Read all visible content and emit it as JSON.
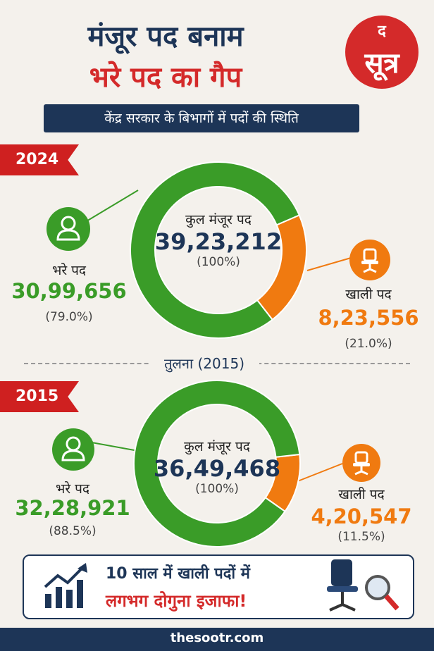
{
  "header": {
    "title_line1": "मंजूर पद बनाम",
    "title_line2": "भरे पद का गैप",
    "subtitle": "केंद्र सरकार के बिभागों में पदों की स्थिति",
    "logo_top": "द",
    "logo_main": "सूत्र"
  },
  "colors": {
    "filled": "#3a9c28",
    "vacant": "#f07a10",
    "navy": "#1d3557",
    "red": "#d42a2a"
  },
  "icons": {
    "filled": "person-icon",
    "vacant": "office-chair-icon",
    "banner_left": "growth-chart-icon",
    "banner_right": "chair-magnifier-icon"
  },
  "compare_label": "तुलना (2015)",
  "banner": {
    "line1": "10 साल में खाली पदों में",
    "line2": "लगभग दोगुना इजाफा!"
  },
  "footer": {
    "site": "thesootr.com"
  },
  "chart_data": [
    {
      "type": "pie",
      "year_label": "2024",
      "center_label": "कुल मंजूर पद",
      "total_text": "39,23,212",
      "total_pct": "(100%)",
      "total": 3923212,
      "slices": [
        {
          "label": "भरे पद",
          "value": 3099656,
          "value_text": "30,99,656",
          "pct_text": "(79.0%)",
          "percent": 79.0,
          "color": "#3a9c28"
        },
        {
          "label": "खाली पद",
          "value": 823556,
          "value_text": "8,23,556",
          "pct_text": "(21.0%)",
          "percent": 21.0,
          "color": "#f07a10"
        }
      ]
    },
    {
      "type": "pie",
      "year_label": "2015",
      "center_label": "कुल मंजूर पद",
      "total_text": "36,49,468",
      "total_pct": "(100%)",
      "total": 3649468,
      "slices": [
        {
          "label": "भरे पद",
          "value": 3228921,
          "value_text": "32,28,921",
          "pct_text": "(88.5%)",
          "percent": 88.5,
          "color": "#3a9c28"
        },
        {
          "label": "खाली पद",
          "value": 420547,
          "value_text": "4,20,547",
          "pct_text": "(11.5%)",
          "percent": 11.5,
          "color": "#f07a10"
        }
      ]
    }
  ]
}
